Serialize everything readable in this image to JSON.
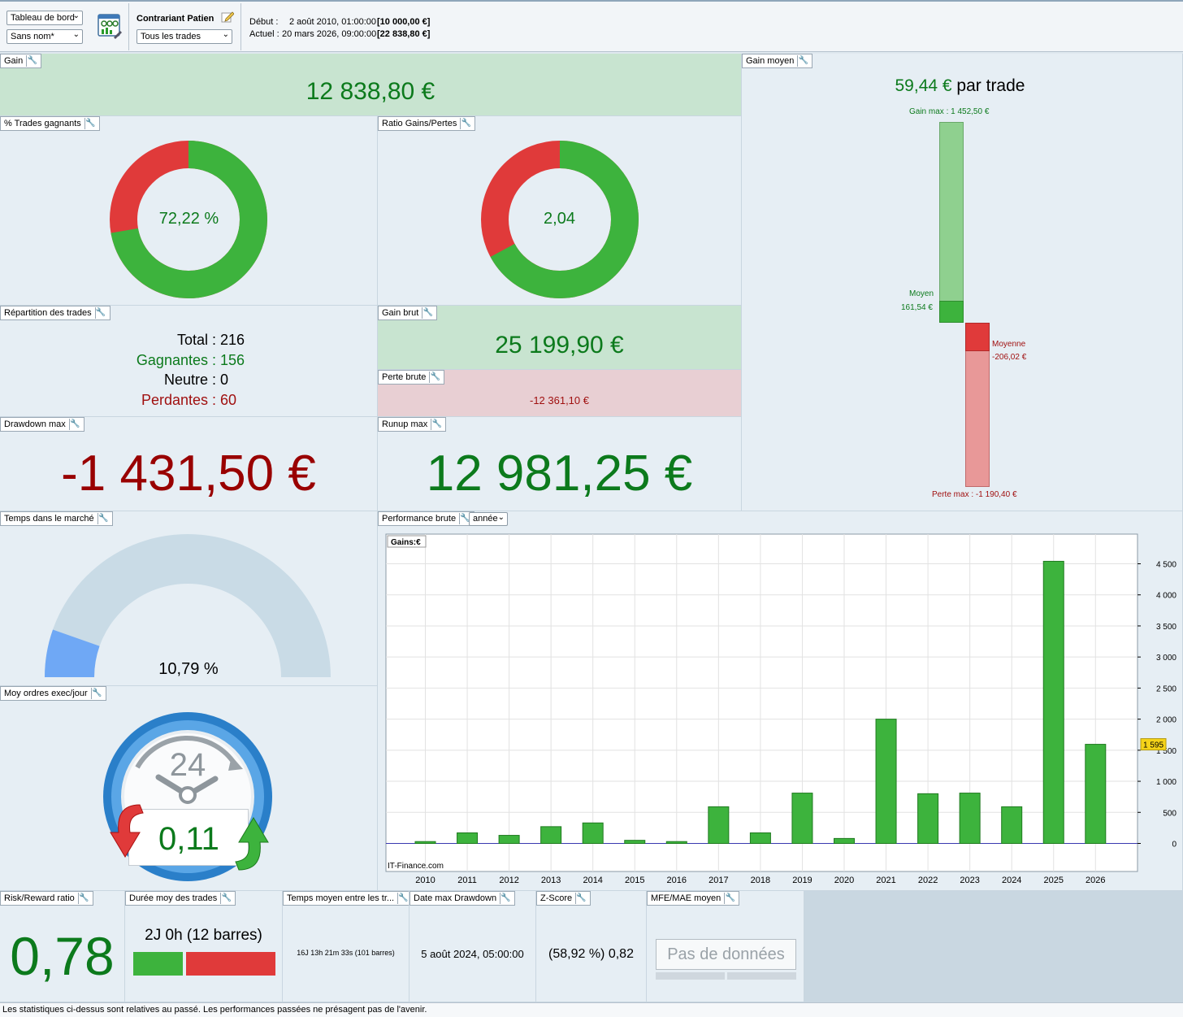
{
  "toolbar": {
    "dashboard_select": "Tableau de bord",
    "name_select": "Sans nom*",
    "strategy_name": "Contrariant Patien",
    "trades_select": "Tous les trades",
    "start_label": "Début :",
    "start_value": "2 août 2010, 01:00:00",
    "start_amount": "[10 000,00 €]",
    "current_label": "Actuel :",
    "current_value": "20 mars 2026, 09:00:00",
    "current_amount": "[22 838,80 €]"
  },
  "gain": {
    "title": "Gain",
    "value": "12 838,80 €"
  },
  "gain_moyen": {
    "title": "Gain moyen",
    "value": "59,44 €",
    "suffix": "par trade",
    "gain_max_label": "Gain max : 1 452,50 €",
    "moyen_label": "Moyen",
    "moyen_value": "161,54 €",
    "moyenne_label": "Moyenne",
    "moyenne_value": "-206,02 €",
    "perte_max_label": "Perte max : -1 190,40 €",
    "gain_max": 1452.5,
    "gain_avg": 161.54,
    "loss_avg": -206.02,
    "loss_max": -1190.4
  },
  "pct_trades": {
    "title": "% Trades gagnants",
    "value": "72,22 %",
    "fraction": 0.7222
  },
  "ratio": {
    "title": "Ratio Gains/Pertes",
    "value": "2,04",
    "fraction": 0.6711
  },
  "repartition": {
    "title": "Répartition des trades",
    "total_label": "Total :",
    "total": "216",
    "gagnantes_label": "Gagnantes :",
    "gagnantes": "156",
    "neutre_label": "Neutre :",
    "neutre": "0",
    "perdantes_label": "Perdantes :",
    "perdantes": "60"
  },
  "gain_brut": {
    "title": "Gain brut",
    "value": "25 199,90 €"
  },
  "perte_brute": {
    "title": "Perte brute",
    "value": "-12 361,10 €"
  },
  "drawdown": {
    "title": "Drawdown max",
    "value": "-1 431,50 €"
  },
  "runup": {
    "title": "Runup max",
    "value": "12 981,25 €"
  },
  "temps_marche": {
    "title": "Temps dans le marché",
    "value": "10,79 %",
    "fraction": 0.1079
  },
  "moy_ordres": {
    "title": "Moy ordres exec/jour",
    "clock": "24",
    "value": "0,11"
  },
  "performance": {
    "title": "Performance brute",
    "period_select": "année",
    "gains_label": "Gains:€",
    "watermark": "IT-Finance.com",
    "last_value_tag": "1 595"
  },
  "chart_data": {
    "type": "bar",
    "categories": [
      "2010",
      "2011",
      "2012",
      "2013",
      "2014",
      "2015",
      "2016",
      "2017",
      "2018",
      "2019",
      "2020",
      "2021",
      "2022",
      "2023",
      "2024",
      "2025",
      "2026"
    ],
    "values": [
      30,
      170,
      130,
      270,
      330,
      50,
      30,
      590,
      170,
      810,
      80,
      2000,
      800,
      810,
      590,
      4540,
      1595
    ],
    "ylim": [
      0,
      5000
    ],
    "yticks": [
      0,
      500,
      1000,
      1500,
      2000,
      2500,
      3000,
      3500,
      4000,
      4500
    ],
    "ytick_labels": [
      "0",
      "500",
      "1 000",
      "1 500",
      "2 000",
      "2 500",
      "3 000",
      "3 500",
      "4 000",
      "4 500"
    ],
    "grid": true,
    "color": "#3db33d"
  },
  "risk_reward": {
    "title": "Risk/Reward ratio",
    "value": "0,78"
  },
  "duree": {
    "title": "Durée moy des trades",
    "value": "2J 0h (12 barres)"
  },
  "temps_moyen": {
    "title": "Temps moyen entre les tr...",
    "value": "16J 13h 21m 33s (101 barres)"
  },
  "date_dd": {
    "title": "Date max Drawdown",
    "value": "5 août 2024, 05:00:00"
  },
  "zscore": {
    "title": "Z-Score",
    "value": "(58,92 %) 0,82"
  },
  "mfe": {
    "title": "MFE/MAE moyen",
    "value": "Pas de données"
  },
  "status": "Les statistiques ci-dessus sont relatives au passé. Les performances passées ne présagent pas de l'avenir.",
  "colors": {
    "green": "#3db33d",
    "red": "#e03a3a",
    "text_green": "#0c7a1c",
    "text_red": "#a01010"
  }
}
